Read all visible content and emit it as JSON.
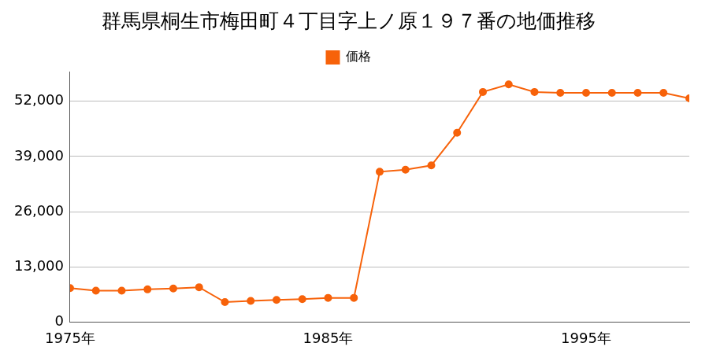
{
  "chart_data": {
    "type": "line",
    "title": "群馬県桐生市梅田町４丁目字上ノ原１９７番の地価推移",
    "x": [
      1975,
      1976,
      1977,
      1978,
      1979,
      1980,
      1981,
      1982,
      1983,
      1984,
      1985,
      1986,
      1987,
      1988,
      1989,
      1990,
      1991,
      1992,
      1993,
      1994,
      1995,
      1996,
      1997,
      1998,
      1999
    ],
    "series": [
      {
        "name": "価格",
        "color": "#f7620a",
        "marker": "circle",
        "values": [
          8000,
          7400,
          7400,
          7700,
          7900,
          8200,
          4700,
          5000,
          5200,
          5400,
          5700,
          5700,
          35400,
          35900,
          36900,
          44600,
          54200,
          56000,
          54200,
          54000,
          54000,
          54000,
          54000,
          54000,
          52700
        ]
      }
    ],
    "xlim": [
      1975,
      1999
    ],
    "xticks": [
      {
        "value": 1975,
        "label": "1975年"
      },
      {
        "value": 1985,
        "label": "1985年"
      },
      {
        "value": 1995,
        "label": "1995年"
      }
    ],
    "ylim": [
      0,
      59000
    ],
    "yticks": [
      0,
      {
        "value": 13000,
        "label": "13,000"
      },
      {
        "value": 26000,
        "label": "26,000"
      },
      {
        "value": 39000,
        "label": "39,000"
      },
      {
        "value": 52000,
        "label": "52,000"
      }
    ],
    "grid": true,
    "legend": "top"
  }
}
